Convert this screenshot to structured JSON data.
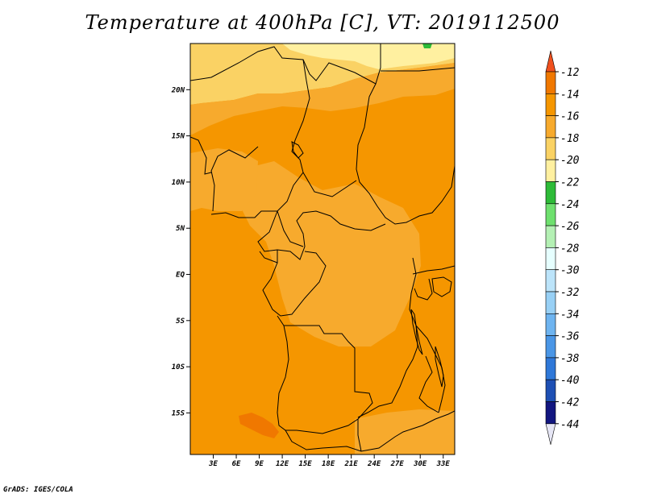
{
  "title": "Temperature at 400hPa [C], VT: 2019112500",
  "credit": "GrADS: IGES/COLA",
  "chart_data": {
    "type": "heatmap",
    "map_extent": {
      "lon": [
        0,
        34.5
      ],
      "lat": [
        -19.5,
        25
      ]
    },
    "x_ticks": [
      {
        "lon": 3,
        "label": "3E"
      },
      {
        "lon": 6,
        "label": "6E"
      },
      {
        "lon": 9,
        "label": "9E"
      },
      {
        "lon": 12,
        "label": "12E"
      },
      {
        "lon": 15,
        "label": "15E"
      },
      {
        "lon": 18,
        "label": "18E"
      },
      {
        "lon": 21,
        "label": "21E"
      },
      {
        "lon": 24,
        "label": "24E"
      },
      {
        "lon": 27,
        "label": "27E"
      },
      {
        "lon": 30,
        "label": "30E"
      },
      {
        "lon": 33,
        "label": "33E"
      }
    ],
    "y_ticks": [
      {
        "lat": 20,
        "label": "20N"
      },
      {
        "lat": 15,
        "label": "15N"
      },
      {
        "lat": 10,
        "label": "10N"
      },
      {
        "lat": 5,
        "label": "5N"
      },
      {
        "lat": 0,
        "label": "EQ"
      },
      {
        "lat": -5,
        "label": "5S"
      },
      {
        "lat": -10,
        "label": "10S"
      },
      {
        "lat": -15,
        "label": "15S"
      }
    ],
    "colorbar": {
      "labels": [
        "-12",
        "-14",
        "-16",
        "-18",
        "-20",
        "-22",
        "-24",
        "-26",
        "-28",
        "-30",
        "-32",
        "-34",
        "-36",
        "-38",
        "-40",
        "-42",
        "-44"
      ],
      "colors": [
        "#f0501e",
        "#f07800",
        "#f59600",
        "#f7aa2d",
        "#fad264",
        "#fff0a0",
        "#2ebb38",
        "#6ee06e",
        "#b4f0b4",
        "#e6ffff",
        "#bce4fa",
        "#98d0f5",
        "#6eb4f0",
        "#4a96e6",
        "#2f78d8",
        "#1e50b4",
        "#121680",
        "#e6e6f5"
      ]
    },
    "regions": [
      {
        "value_range": "-20 to -22",
        "color": "#fff0a0"
      },
      {
        "value_range": "-18 to -20",
        "color": "#fad264"
      },
      {
        "value_range": "-16 to -18",
        "color": "#f7aa2d"
      },
      {
        "value_range": "-14 to -16",
        "color": "#f59600"
      },
      {
        "value_range": "-12 to -14",
        "color": "#f07800"
      },
      {
        "value_range": "-22 to -24",
        "color": "#2ebb38"
      }
    ]
  }
}
